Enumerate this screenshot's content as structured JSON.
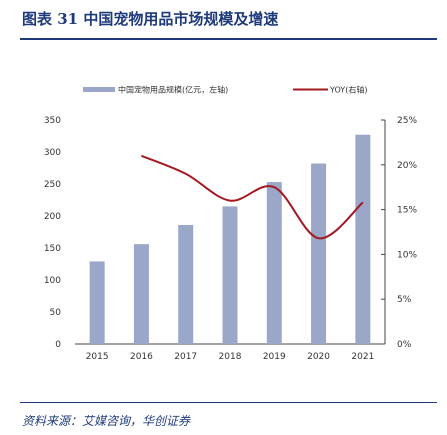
{
  "page": {
    "title": "图表 31 中国宠物用品市场规模及增速",
    "source": "资料来源：艾媒咨询，华创证券"
  },
  "chart_data": {
    "type": "bar",
    "categories": [
      "2015",
      "2016",
      "2017",
      "2018",
      "2019",
      "2020",
      "2021"
    ],
    "series": [
      {
        "name": "中国宠物用品规模(亿元，左轴)",
        "type": "bar",
        "axis": "left",
        "values": [
          129,
          156,
          186,
          215,
          253,
          282,
          327
        ],
        "color": "#9aa7c8"
      },
      {
        "name": "YOY(右轴)",
        "type": "line",
        "axis": "right",
        "values": [
          null,
          21.0,
          19.0,
          16.0,
          17.5,
          11.8,
          15.8
        ],
        "color": "#a31a22"
      }
    ],
    "y_left": {
      "min": 0,
      "max": 350,
      "ticks": [
        "0",
        "50",
        "100",
        "150",
        "200",
        "250",
        "300",
        "350"
      ]
    },
    "y_right": {
      "min": 0,
      "max": 25,
      "ticks": [
        "0%",
        "5%",
        "10%",
        "15%",
        "20%",
        "25%"
      ]
    },
    "legend_position": "top",
    "grid": false
  }
}
